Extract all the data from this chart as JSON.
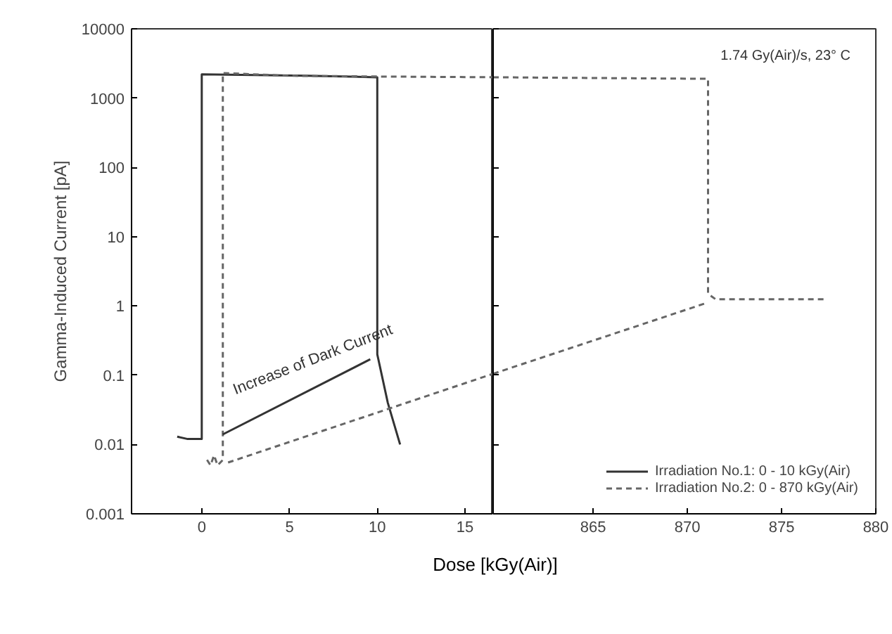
{
  "chart_data": [
    {
      "type": "line",
      "ylabel": "Gamma-Induced Current [pA]",
      "xlabel": "Dose [kGy(Air)]",
      "log": "y",
      "xlim": [
        -4,
        16.6
      ],
      "xticks": [
        0,
        5,
        10,
        15
      ],
      "ylim": [
        0.001,
        10000
      ],
      "yticks": [
        0.001,
        0.01,
        0.1,
        1,
        10,
        100,
        1000,
        10000
      ],
      "grid": false,
      "legend": "bottom right",
      "annotations": [
        "Increase of Dark Current"
      ],
      "series": [
        {
          "name": "Irradiation No.1: 0 - 10 kGy(Air)",
          "color": "#333333",
          "line_style": "solid",
          "x": [
            -1.4,
            -0.8,
            -0.3,
            0,
            0,
            3,
            6,
            10,
            10,
            10.6,
            11.3
          ],
          "values": [
            0.013,
            0.012,
            0.012,
            0.012,
            2200,
            2150,
            2100,
            2000,
            0.2,
            0.04,
            0.01
          ]
        },
        {
          "name": "Irradiation No.2: 0 - 870 kGy(Air)",
          "color": "#666666",
          "line_style": "dashed",
          "x": [
            0.3,
            0.5,
            0.7,
            0.9,
            1.2,
            1.2,
            5,
            10,
            16.6
          ],
          "values": [
            0.006,
            0.005,
            0.007,
            0.005,
            0.006,
            2300,
            2100,
            2050,
            2000
          ]
        },
        {
          "color": "#333333",
          "line_style": "solid",
          "x": [
            1.2,
            9.6
          ],
          "values": [
            0.014,
            0.17
          ]
        },
        {
          "color": "#666666",
          "line_style": "dashed",
          "x": [
            1.5,
            16.6
          ],
          "values": [
            0.0055,
            0.105
          ]
        }
      ]
    },
    {
      "type": "line",
      "log": "y",
      "xlim": [
        859.7,
        880
      ],
      "xticks": [
        865,
        870,
        875,
        880
      ],
      "ylim": [
        0.001,
        10000
      ],
      "yticks": [
        0.001,
        0.01,
        0.1,
        1,
        10,
        100,
        1000,
        10000
      ],
      "tick_labels": "x",
      "grid": false,
      "annotations": [
        "1.74 Gy(Air)/s, 23° C"
      ],
      "series": [
        {
          "color": "#666666",
          "line_style": "dashed",
          "x": [
            859.7,
            865,
            871.1,
            871.1,
            871.5,
            874,
            877.4
          ],
          "values": [
            2000,
            1950,
            1900,
            1.5,
            1.25,
            1.25,
            1.25
          ]
        },
        {
          "color": "#666666",
          "line_style": "dashed",
          "x": [
            859.7,
            871
          ],
          "values": [
            0.105,
            1.1
          ]
        }
      ]
    }
  ]
}
